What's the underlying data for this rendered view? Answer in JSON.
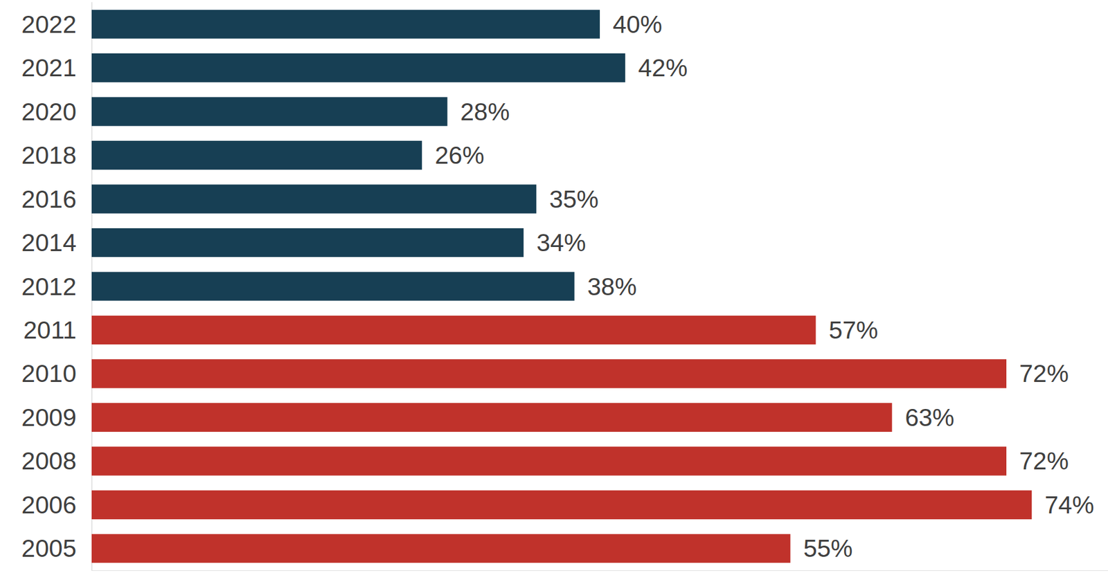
{
  "chart_data": {
    "type": "bar",
    "orientation": "horizontal",
    "categories": [
      "2022",
      "2021",
      "2020",
      "2018",
      "2016",
      "2014",
      "2012",
      "2011",
      "2010",
      "2009",
      "2008",
      "2006",
      "2005"
    ],
    "values": [
      40,
      42,
      28,
      26,
      35,
      34,
      38,
      57,
      72,
      63,
      72,
      74,
      55
    ],
    "value_labels": [
      "40%",
      "42%",
      "28%",
      "26%",
      "35%",
      "34%",
      "38%",
      "57%",
      "72%",
      "63%",
      "72%",
      "74%",
      "55%"
    ],
    "colors": [
      "#173f54",
      "#173f54",
      "#173f54",
      "#173f54",
      "#173f54",
      "#173f54",
      "#173f54",
      "#c0322b",
      "#c0322b",
      "#c0322b",
      "#c0322b",
      "#c0322b",
      "#c0322b"
    ],
    "xlim": [
      0,
      80
    ],
    "xticks": [
      0,
      80
    ],
    "grid": false,
    "data_labels": true,
    "tick_labels": "y"
  }
}
